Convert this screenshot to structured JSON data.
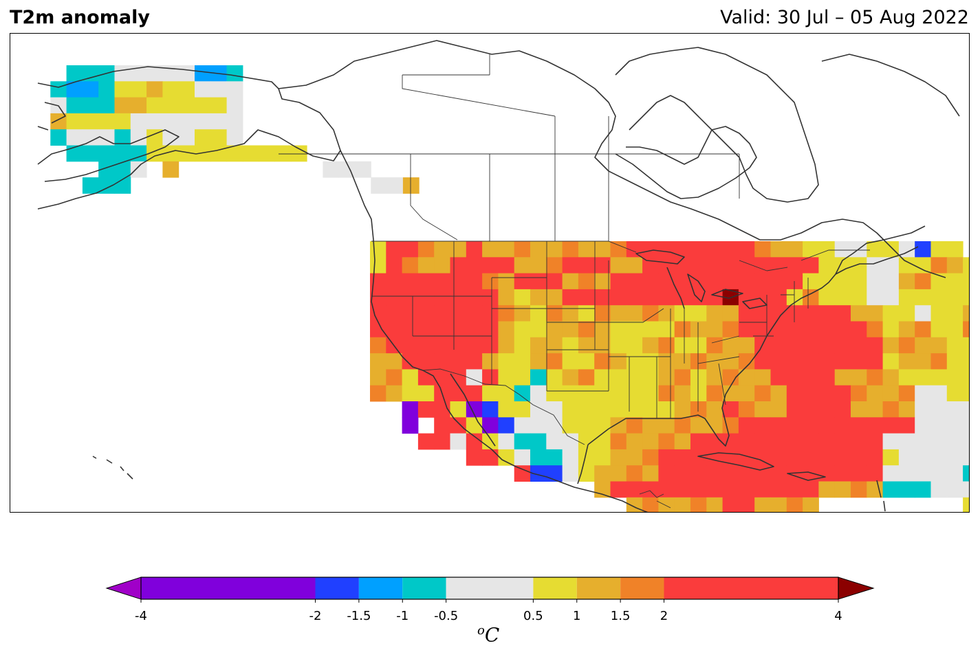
{
  "header": {
    "title": "T2m anomaly",
    "valid": "Valid: 30 Jul – 05 Aug 2022"
  },
  "colors": {
    "c_m4": "#8000dc",
    "c_m2": "#2040ff",
    "c_m15": "#00a0ff",
    "c_m1": "#00c8c8",
    "c_0": "#e6e6e6",
    "c_05": "#e6dc32",
    "c_1": "#e6af2d",
    "c_15": "#f08228",
    "c_2": "#fa3c3c",
    "c_4": "#8b0000",
    "under": "#a000c8",
    "coast": "#333333"
  },
  "legend": {
    "unit_main": "C",
    "unit_sup": "o",
    "ticks": [
      "-4",
      "-2",
      "-1.5",
      "-1",
      "-0.5",
      "0.5",
      "1",
      "1.5",
      "2",
      "4"
    ],
    "bounds": [
      -4,
      -2,
      -1.5,
      -1,
      -0.5,
      0.5,
      1,
      1.5,
      2,
      4
    ]
  },
  "map": {
    "rows": [
      {
        "lat_index": 0,
        "cells": "..CCCGGGGGBBC"
      },
      {
        "lat_index": 1,
        "cells": ".CBBCYYOYYGGG"
      },
      {
        "lat_index": 2,
        "cells": ".GCCCOOYYYYYG"
      },
      {
        "lat_index": 3,
        "cells": ".OYYYYGGGGGGG"
      },
      {
        "lat_index": 4,
        "cells": ".CGGGCGYGGYYG"
      },
      {
        "lat_index": 5,
        "cells": "..CCCCCYYYYYYYYYY"
      },
      {
        "lat_index": 6,
        "cells": "....CCG.O.........GGG"
      },
      {
        "lat_index": 7,
        "cells": "...CCC...............GGO"
      }
    ],
    "conus_rows": [
      "YRROOOROOOOOOOOORRRRRRRROOOYYGGYYGBYY",
      "YROOORRRROOORRROORRRRRRRRRRRYYYGGYYOOYYY",
      "RRRRRRROORRROOORRRRRRRRRRRRYYYYGGOOYYYYGGGYYOOO",
      "RRRRRRRROYOORRRRRRRRRR4RRRYOYYYGGYYYYYYGGGYYOOOO",
      "RRRRRRRROOYOOYOOOOOYYOORRRRRRROOYYGYYOOYYYYYYYGGYOOOOORRR",
      "RRRRRRRROYYOOOOYYYYOOOORRRRRRRROYOOYYOOOYYYYGYYYYYOOORRR",
      "ORRRRRRROYOOYOOYYOOYYOOORRRRRRRROOOOYYYYYOYYYYYYYOOOORR",
      "OORRRRROYYOOYYOOYYOOOOOORRRRRRRRYOOOYYYYYYYYYOYYYOOOY",
      "OOYRRRGRYYCYOOYYYYOOYOOOORRRROOOOYYYYYYGGYYYYYYYOYY",
      "OOYYRRRYYCGYYYYYYYOOYOOOOORRRROOOOGGYYYYGYYYYOOYOOY",
      "..PRRYPBYYGGYYYYYYYOOOROOORRRROOOOGGGGYYYGGYYOOOOY",
      "..P.RRYPBGGGYYYOOOOOOOORRRRRRRRRRRGGGGGYYGGYYOOOOO",
      "...RRGRYGCCGGYYOOOOORRRRRRRRRRRRGGGGGGYYGGYYYOOOY",
      "......RRYGCCGYYOOORRRRRRRRRRRRRRYGGGGGGYYYGYYYYOO",
      ".........RBBGYOOOORRRRRRRRRRRRRRGGGGGCCYGGYYYYYY",
      "..............ORRRRRRRRRRRRROOOOCCCGGGGYYYYY",
      "................OOOOOORROOOO.........YYYG",
      "..................OOOOOOO...........YYYG",
      "...................YY...............YYY"
    ]
  }
}
